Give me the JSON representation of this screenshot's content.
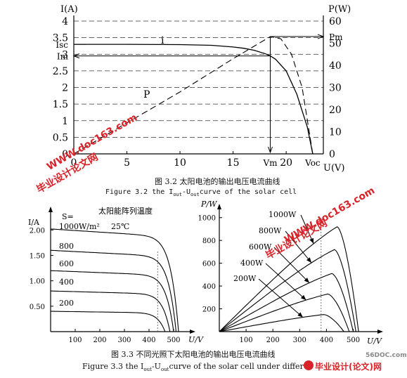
{
  "watermarks": {
    "site": "WWW.doc163.com",
    "brand": "毕业设计论文网",
    "brand_logo": "毕业设计(论文)网",
    "corner": "56DOC.com"
  },
  "captions": {
    "fig32_cn": "图 3.2   太阳电池的输出电压电流曲线",
    "fig32_en": "Figure 3.2  the I",
    "fig32_en_sub1": "out",
    "fig32_en_mid": "-U",
    "fig32_en_sub2": "out",
    "fig32_en_tail": "curve of the solar cell",
    "fig33_cn": "图 3.3   不同光照下太阳电池的输出电压电流曲线",
    "fig33_en": "Figure 3.3    the I",
    "fig33_en_sub1": "out",
    "fig33_en_mid": "-U",
    "fig33_en_sub2": "out",
    "fig33_en_tail": "curve of the solar cell under differe"
  },
  "chart_data": [
    {
      "type": "line",
      "ylabel_left": "I(A)",
      "ylabel_right": "P(W)",
      "xlabel": "U(V)",
      "xticks": [
        "0",
        "5",
        "10",
        "15",
        "Vm",
        "20",
        "Voc"
      ],
      "xtick_values": [
        0,
        5,
        10,
        15,
        18.5,
        20,
        22.5
      ],
      "yticks_left": [
        "0",
        "0.5",
        "1",
        "1.5",
        "2",
        "2.5",
        "Im",
        "3",
        "Isc",
        "3.5",
        "4"
      ],
      "yticks_right": [
        "0",
        "10",
        "20",
        "30",
        "40",
        "50",
        "Pm",
        "60"
      ],
      "ylim_left": [
        0,
        4
      ],
      "ylim_right": [
        0,
        60
      ],
      "xlim": [
        0,
        23.5
      ],
      "annotations": [
        "i",
        "P"
      ],
      "Isc": 3.3,
      "Im": 2.95,
      "Vm": 18.5,
      "Voc": 22.5,
      "Pm": 53,
      "series": [
        {
          "name": "i",
          "x": [
            0,
            5,
            10,
            13,
            15,
            16,
            17,
            18,
            18.5,
            19,
            20,
            21,
            22,
            22.5
          ],
          "y": [
            3.3,
            3.3,
            3.29,
            3.27,
            3.22,
            3.18,
            3.12,
            3.02,
            2.95,
            2.85,
            2.5,
            1.8,
            0.8,
            0
          ]
        },
        {
          "name": "P",
          "x": [
            0,
            5,
            10,
            15,
            18.5,
            19.5,
            20.5,
            21.5,
            22.5
          ],
          "y": [
            0,
            14,
            28,
            43,
            53,
            52,
            45,
            30,
            0
          ]
        }
      ],
      "grid": true
    },
    {
      "type": "line",
      "title": "太阳能阵列温度",
      "ylabel": "I/A",
      "xlabel": "U/V",
      "annotations": [
        "S=",
        "1000W/m²",
        "25℃",
        "800",
        "600",
        "400",
        "200"
      ],
      "xticks": [
        100,
        200,
        300,
        400,
        500
      ],
      "yticks": [
        0.5,
        1.0,
        1.5,
        2.0
      ],
      "yticklabels": [
        "0.50",
        "1.00",
        "1.50",
        "2.00"
      ],
      "xlim": [
        0,
        560
      ],
      "ylim": [
        0,
        2.35
      ],
      "series": [
        {
          "name": "1000",
          "Isc": 2.02,
          "Voc": 520
        },
        {
          "name": "800",
          "Isc": 1.6,
          "Voc": 510
        },
        {
          "name": "600",
          "Isc": 1.2,
          "Voc": 500
        },
        {
          "name": "400",
          "Isc": 0.8,
          "Voc": 485
        },
        {
          "name": "200",
          "Isc": 0.4,
          "Voc": 465
        }
      ],
      "mpp_line_x": 435,
      "grid": false
    },
    {
      "type": "line",
      "ylabel": "P/W",
      "xlabel": "U/V",
      "annotations": [
        "1000W",
        "800W",
        "600W",
        "400W",
        "200W"
      ],
      "xticks": [
        100,
        200,
        300,
        400,
        500
      ],
      "yticks": [
        200,
        400,
        600,
        800,
        1000
      ],
      "yticklabels": [
        "200",
        "400",
        "600",
        "800",
        "1000"
      ],
      "xlim": [
        0,
        580
      ],
      "ylim": [
        0,
        1060
      ],
      "series": [
        {
          "name": "1000W",
          "Pmax": 920,
          "Vmp": 440,
          "Voc": 520
        },
        {
          "name": "800W",
          "Pmax": 720,
          "Vmp": 430,
          "Voc": 510
        },
        {
          "name": "600W",
          "Pmax": 510,
          "Vmp": 420,
          "Voc": 500
        },
        {
          "name": "400W",
          "Pmax": 330,
          "Vmp": 405,
          "Voc": 485
        },
        {
          "name": "200W",
          "Pmax": 150,
          "Vmp": 390,
          "Voc": 465
        }
      ],
      "mpp_line_x": 380,
      "grid": false
    }
  ]
}
